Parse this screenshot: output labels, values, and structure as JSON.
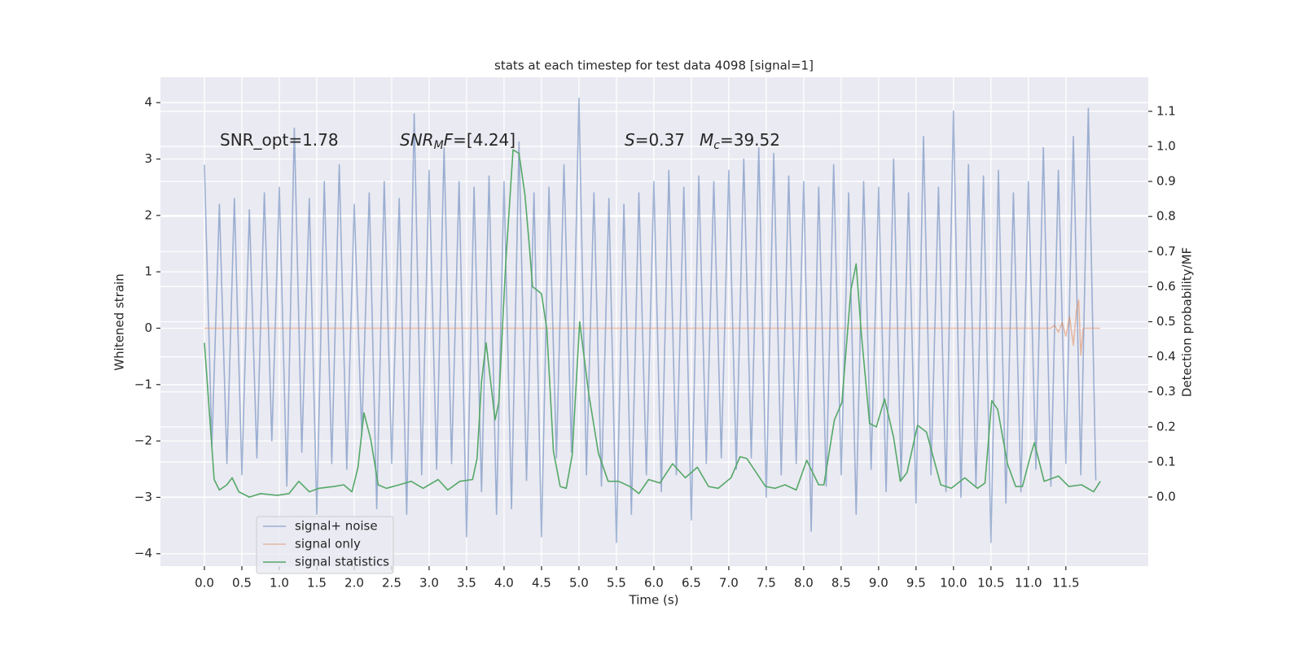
{
  "chart_data": {
    "type": "line",
    "title": "stats at each timestep for test data 4098 [signal=1]",
    "xlabel": "Time (s)",
    "ylabel": "Whitened strain",
    "y2label": "Detection probability/MF",
    "annotations": [
      [
        {
          "text": "SNR_opt=1.78"
        }
      ],
      [
        {
          "text": "SNR",
          "italic": true
        },
        {
          "text": "M",
          "italic": true,
          "sub": true
        },
        {
          "text": "F",
          "italic": true
        },
        {
          "text": "=[4.24]"
        }
      ],
      [
        {
          "text": "S",
          "italic": true
        },
        {
          "text": "=0.37"
        }
      ],
      [
        {
          "text": "M",
          "italic": true
        },
        {
          "text": "c",
          "italic": true,
          "sub": true
        },
        {
          "text": "=39.52"
        }
      ]
    ],
    "xlim": [
      -0.587,
      12.6
    ],
    "ylim": [
      -4.22,
      4.45
    ],
    "y2lim": [
      -0.197,
      1.197
    ],
    "xticks": [
      {
        "value": 0,
        "label": "0.0"
      },
      0.5,
      {
        "value": 1,
        "label": "1.0"
      },
      1.5,
      {
        "value": 2,
        "label": "2.0"
      },
      2.5,
      {
        "value": 3,
        "label": "3.0"
      },
      3.5,
      {
        "value": 4,
        "label": "4.0"
      },
      4.5,
      {
        "value": 5,
        "label": "5.0"
      },
      5.5,
      {
        "value": 6,
        "label": "6.0"
      },
      6.5,
      {
        "value": 7,
        "label": "7.0"
      },
      7.5,
      {
        "value": 8,
        "label": "8.0"
      },
      8.5,
      {
        "value": 9,
        "label": "9.0"
      },
      9.5,
      {
        "value": 10,
        "label": "10.0"
      },
      10.5,
      {
        "value": 11,
        "label": "11.0"
      },
      11.5
    ],
    "yticks": [
      {
        "value": -4,
        "label": "−4"
      },
      {
        "value": -3,
        "label": "−3"
      },
      {
        "value": -2,
        "label": "−2"
      },
      {
        "value": -1,
        "label": "−1"
      },
      0,
      1,
      2,
      3,
      4
    ],
    "y2ticks": [
      {
        "value": 0,
        "label": "0.0"
      },
      0.1,
      0.2,
      0.3,
      0.4,
      0.5,
      0.6,
      0.7,
      0.8,
      0.9,
      {
        "value": 1,
        "label": "1.0"
      },
      1.1
    ],
    "grid": true,
    "legend": "lower left",
    "series": [
      {
        "name": "signal+ noise",
        "color": "#4c72b0",
        "opacity": 0.5,
        "x": [
          0,
          0.1,
          0.2,
          0.3,
          0.4,
          0.5,
          0.6,
          0.7,
          0.8,
          0.9,
          1,
          1.1,
          1.2,
          1.3,
          1.4,
          1.5,
          1.6,
          1.7,
          1.8,
          1.9,
          2,
          2.1,
          2.2,
          2.3,
          2.4,
          2.5,
          2.6,
          2.7,
          2.8,
          2.9,
          3,
          3.1,
          3.2,
          3.3,
          3.4,
          3.5,
          3.6,
          3.7,
          3.8,
          3.9,
          4,
          4.1,
          4.2,
          4.3,
          4.4,
          4.5,
          4.6,
          4.7,
          4.8,
          4.9,
          5,
          5.1,
          5.2,
          5.3,
          5.4,
          5.5,
          5.6,
          5.7,
          5.8,
          5.9,
          6,
          6.1,
          6.2,
          6.3,
          6.4,
          6.5,
          6.6,
          6.7,
          6.8,
          6.9,
          7,
          7.1,
          7.2,
          7.3,
          7.4,
          7.5,
          7.6,
          7.7,
          7.8,
          7.9,
          8,
          8.1,
          8.2,
          8.3,
          8.4,
          8.5,
          8.6,
          8.7,
          8.8,
          8.9,
          9,
          9.1,
          9.2,
          9.3,
          9.4,
          9.5,
          9.6,
          9.7,
          9.8,
          9.9,
          10,
          10.1,
          10.2,
          10.3,
          10.4,
          10.5,
          10.6,
          10.7,
          10.8,
          10.9,
          11,
          11.1,
          11.2,
          11.3,
          11.4,
          11.5,
          11.6,
          11.7,
          11.8,
          11.9
        ],
        "values": [
          2.9,
          -2.1,
          2.2,
          -2.4,
          2.3,
          -2.6,
          2.1,
          -2.3,
          2.4,
          -2.0,
          2.5,
          -2.8,
          3.55,
          -2.2,
          2.3,
          -3.3,
          2.6,
          -2.4,
          2.9,
          -2.5,
          2.2,
          -1.9,
          2.4,
          -3.2,
          2.6,
          -2.4,
          2.3,
          -3.3,
          3.8,
          -2.6,
          2.8,
          -2.5,
          3.2,
          -2.4,
          2.6,
          -3.7,
          2.5,
          -2.9,
          2.7,
          -3.3,
          2.6,
          -3.2,
          3.3,
          -2.7,
          2.4,
          -3.7,
          2.5,
          -2.3,
          2.9,
          -2.2,
          4.08,
          -2.6,
          2.4,
          -2.8,
          2.3,
          -3.8,
          2.2,
          -3.3,
          2.4,
          -2.6,
          2.6,
          -2.9,
          2.8,
          -2.6,
          2.5,
          -3.4,
          2.7,
          -2.4,
          2.6,
          -2.3,
          2.8,
          -2.5,
          3.0,
          -2.3,
          3.2,
          -3.0,
          3.1,
          -2.6,
          2.7,
          -2.4,
          2.6,
          -3.6,
          2.5,
          -2.8,
          2.9,
          -2.6,
          2.4,
          -3.3,
          2.6,
          -2.5,
          2.5,
          -2.9,
          3.0,
          -2.7,
          2.4,
          -3.1,
          3.4,
          -2.6,
          2.5,
          -2.9,
          3.85,
          -3.0,
          2.9,
          -2.8,
          2.7,
          -3.8,
          2.8,
          -3.1,
          2.4,
          -2.9,
          2.6,
          -2.5,
          3.2,
          -2.8,
          2.8,
          -2.4,
          3.4,
          -2.6,
          3.9,
          -2.7
        ]
      },
      {
        "name": "signal only",
        "color": "#dd8452",
        "opacity": 0.5,
        "x": [
          0,
          11.3,
          11.35,
          11.4,
          11.45,
          11.5,
          11.55,
          11.6,
          11.64,
          11.67,
          11.7,
          11.73,
          11.96
        ],
        "values": [
          0,
          0,
          0.05,
          -0.07,
          0.1,
          -0.14,
          0.2,
          -0.3,
          0.3,
          0.5,
          -0.48,
          0,
          0
        ]
      },
      {
        "name": "signal statistics",
        "color": "#55a868",
        "opacity": 1,
        "axis": "y2",
        "x": [
          0,
          0.13,
          0.2,
          0.3,
          0.37,
          0.46,
          0.6,
          0.75,
          0.97,
          1.13,
          1.26,
          1.4,
          1.53,
          1.73,
          1.86,
          1.97,
          2.05,
          2.13,
          2.22,
          2.32,
          2.43,
          2.6,
          2.76,
          2.92,
          3.12,
          3.25,
          3.41,
          3.58,
          3.64,
          3.7,
          3.76,
          3.88,
          3.93,
          4.02,
          4.12,
          4.2,
          4.28,
          4.34,
          4.38,
          4.5,
          4.57,
          4.66,
          4.75,
          4.83,
          4.91,
          5.01,
          5.13,
          5.26,
          5.39,
          5.53,
          5.68,
          5.8,
          5.93,
          6.08,
          6.25,
          6.42,
          6.58,
          6.73,
          6.86,
          7.03,
          7.15,
          7.24,
          7.49,
          7.62,
          7.75,
          7.9,
          8.04,
          8.2,
          8.27,
          8.41,
          8.51,
          8.63,
          8.7,
          8.77,
          8.88,
          8.97,
          9.08,
          9.2,
          9.29,
          9.38,
          9.52,
          9.64,
          9.83,
          9.97,
          10.15,
          10.32,
          10.42,
          10.51,
          10.59,
          10.72,
          10.83,
          10.92,
          11.03,
          11.08,
          11.21,
          11.4,
          11.54,
          11.71,
          11.87,
          11.96
        ],
        "values": [
          0.44,
          0.05,
          0.02,
          0.035,
          0.055,
          0.015,
          0.0,
          0.01,
          0.005,
          0.01,
          0.045,
          0.015,
          0.025,
          0.03,
          0.035,
          0.015,
          0.085,
          0.24,
          0.165,
          0.035,
          0.025,
          0.035,
          0.045,
          0.025,
          0.05,
          0.02,
          0.045,
          0.05,
          0.11,
          0.33,
          0.44,
          0.22,
          0.27,
          0.66,
          0.99,
          0.98,
          0.86,
          0.71,
          0.6,
          0.58,
          0.48,
          0.13,
          0.03,
          0.025,
          0.12,
          0.5,
          0.295,
          0.125,
          0.045,
          0.045,
          0.03,
          0.01,
          0.05,
          0.04,
          0.095,
          0.055,
          0.085,
          0.03,
          0.025,
          0.055,
          0.115,
          0.11,
          0.03,
          0.025,
          0.035,
          0.02,
          0.105,
          0.035,
          0.035,
          0.22,
          0.27,
          0.59,
          0.665,
          0.465,
          0.21,
          0.2,
          0.28,
          0.17,
          0.045,
          0.07,
          0.205,
          0.185,
          0.035,
          0.025,
          0.055,
          0.025,
          0.04,
          0.275,
          0.25,
          0.095,
          0.03,
          0.03,
          0.12,
          0.155,
          0.045,
          0.06,
          0.03,
          0.035,
          0.015,
          0.045
        ]
      }
    ]
  }
}
